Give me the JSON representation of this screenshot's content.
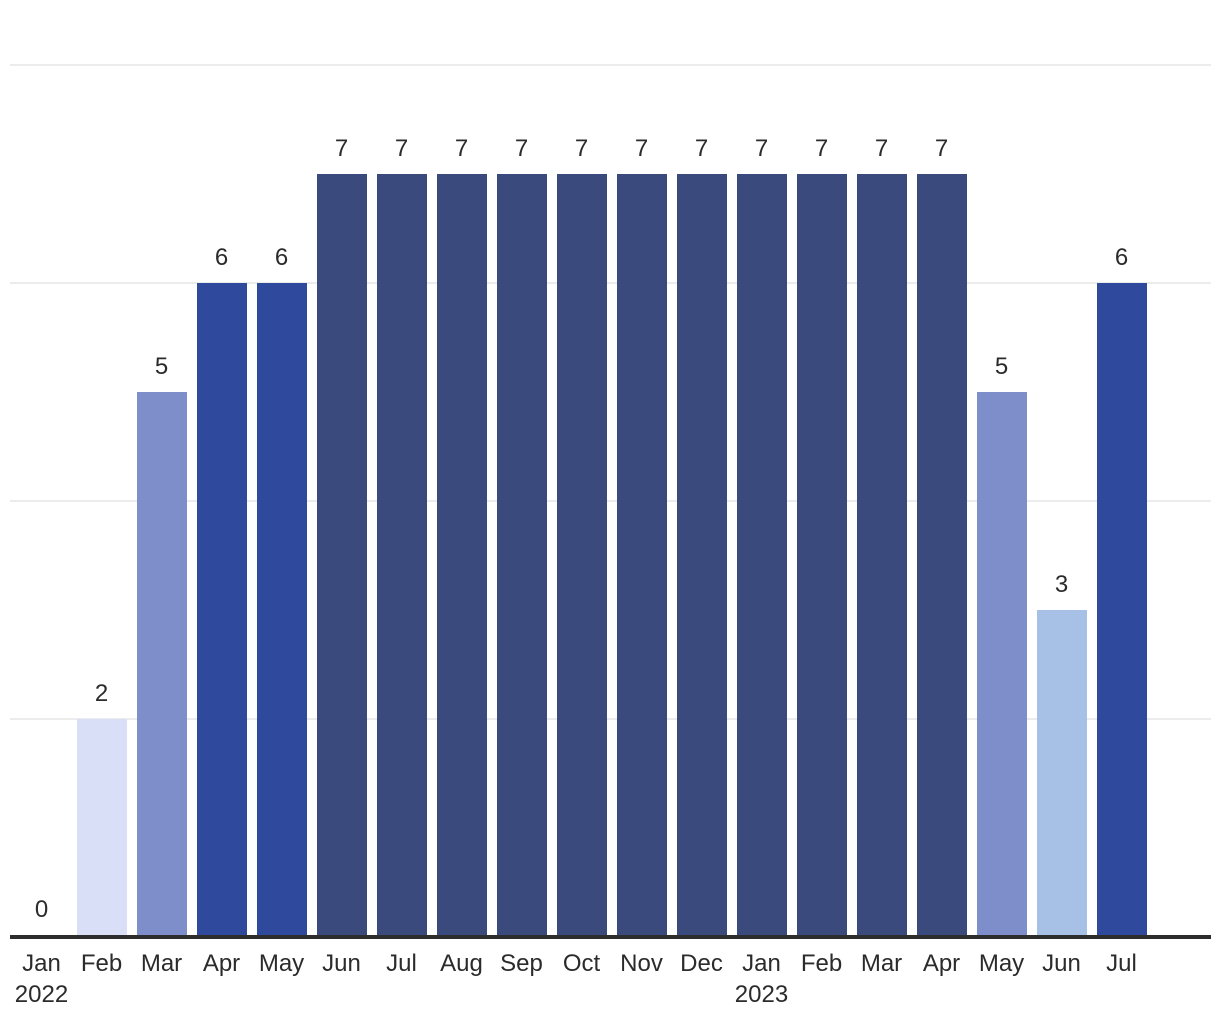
{
  "chart_data": {
    "type": "bar",
    "title": "",
    "xlabel": "",
    "ylabel": "",
    "categories": [
      "Jan",
      "Feb",
      "Mar",
      "Apr",
      "May",
      "Jun",
      "Jul",
      "Aug",
      "Sep",
      "Oct",
      "Nov",
      "Dec",
      "Jan",
      "Feb",
      "Mar",
      "Apr",
      "May",
      "Jun",
      "Jul"
    ],
    "values": [
      0,
      2,
      5,
      6,
      6,
      7,
      7,
      7,
      7,
      7,
      7,
      7,
      7,
      7,
      7,
      7,
      5,
      3,
      6
    ],
    "value_labels": [
      "0",
      "2",
      "5",
      "6",
      "6",
      "7",
      "7",
      "7",
      "7",
      "7",
      "7",
      "7",
      "7",
      "7",
      "7",
      "7",
      "5",
      "3",
      "6"
    ],
    "year_markers": [
      {
        "label": "2022",
        "category_index": 0
      },
      {
        "label": "2023",
        "category_index": 12
      }
    ],
    "ylim": [
      0,
      8.5
    ],
    "gridline_values": [
      2,
      4,
      6,
      8
    ],
    "y_axis_tick_labels": "none",
    "legend": "none",
    "bar_color_by_value": {
      "2": "#d9dff7",
      "3": "#a7c0e6",
      "5": "#7d8eca",
      "6": "#2f4a9c",
      "7": "#3b4a7c"
    },
    "grid_color": "#ececec",
    "axis_color": "#2d2d2d",
    "text_color": "#2b2b2b",
    "background_color": "#ffffff"
  }
}
